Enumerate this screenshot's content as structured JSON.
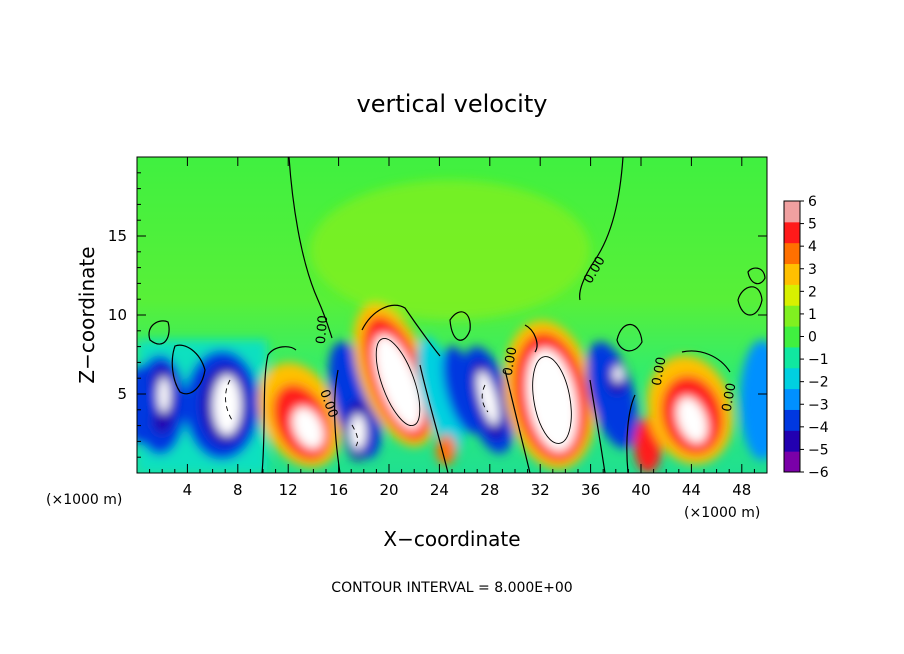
{
  "chart_data": {
    "type": "heatmap",
    "title": "vertical velocity",
    "xlabel": "X−coordinate",
    "ylabel": "Z−coordinate",
    "x_unit_note": "(×1000 m)",
    "x_unit_note_right": "(×1000 m)",
    "xlim": [
      0,
      50
    ],
    "ylim": [
      0,
      20
    ],
    "x_ticks": [
      4,
      8,
      12,
      16,
      20,
      24,
      28,
      32,
      36,
      40,
      44,
      48
    ],
    "x_tick_labels": [
      "4",
      "8",
      "12",
      "16",
      "20",
      "24",
      "28",
      "32",
      "36",
      "40",
      "44",
      "48"
    ],
    "y_ticks": [
      5,
      10,
      15
    ],
    "y_tick_labels": [
      "5",
      "10",
      "15"
    ],
    "colorbar": {
      "min": -6,
      "max": 6,
      "ticks": [
        6,
        5,
        4,
        3,
        2,
        1,
        0,
        -1,
        -2,
        -3,
        -4,
        -5,
        -6
      ],
      "tick_labels": [
        "6",
        "5",
        "4",
        "3",
        "2",
        "1",
        "0",
        "−1",
        "−2",
        "−3",
        "−4",
        "−5",
        "−6"
      ],
      "colors": [
        "#7a00a8",
        "#2200b0",
        "#0038e0",
        "#0090ff",
        "#00d0e0",
        "#10e8a0",
        "#40f040",
        "#80f020",
        "#d8f000",
        "#ffc000",
        "#ff7000",
        "#ff1a1a",
        "#f0a0a0"
      ]
    },
    "contour_interval_text": "CONTOUR INTERVAL = 8.000E+00",
    "contour_labels": [
      "0.00",
      "0.00",
      "0.00",
      "0.00",
      "0.00",
      "0.00"
    ],
    "cells": [
      {
        "x": 4.5,
        "z": 4.0,
        "w": -5.5
      },
      {
        "x": 8.0,
        "z": 4.5,
        "w": -6.0
      },
      {
        "x": 14.5,
        "z": 2.5,
        "w": 5.5
      },
      {
        "x": 17.5,
        "z": 2.5,
        "w": -5.0
      },
      {
        "x": 20.5,
        "z": 6.5,
        "w": 6.0
      },
      {
        "x": 23.5,
        "z": 4.0,
        "w": -2.5
      },
      {
        "x": 25.5,
        "z": 5.0,
        "w": -5.5
      },
      {
        "x": 27.5,
        "z": 4.5,
        "w": -6.0
      },
      {
        "x": 33.0,
        "z": 5.0,
        "w": 6.0
      },
      {
        "x": 38.5,
        "z": 5.0,
        "w": -5.0
      },
      {
        "x": 40.5,
        "z": 2.0,
        "w": 4.5
      },
      {
        "x": 44.5,
        "z": 3.5,
        "w": 5.5
      },
      {
        "x": 49.5,
        "z": 4.5,
        "w": -3.0
      },
      {
        "x": 1.0,
        "z": 4.0,
        "w": -4.0
      }
    ]
  }
}
